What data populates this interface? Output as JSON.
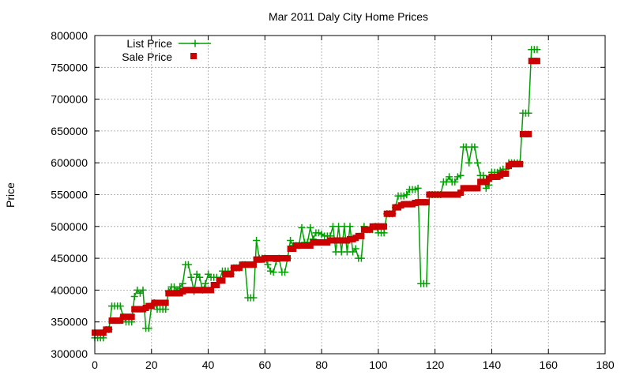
{
  "chart_data": {
    "type": "line",
    "title": "Mar 2011 Daly City Home Prices",
    "xlabel": "",
    "ylabel": "Price",
    "xlim": [
      0,
      180
    ],
    "ylim": [
      300000,
      800000
    ],
    "x_ticks": [
      0,
      20,
      40,
      60,
      80,
      100,
      120,
      140,
      160,
      180
    ],
    "y_ticks": [
      300000,
      350000,
      400000,
      450000,
      500000,
      550000,
      600000,
      650000,
      700000,
      750000,
      800000
    ],
    "grid": true,
    "legend_position": "top-left",
    "series": [
      {
        "name": "List Price",
        "style": "line with + markers",
        "color": "#00a000",
        "points": [
          [
            0,
            325000
          ],
          [
            1,
            325000
          ],
          [
            2,
            325000
          ],
          [
            3,
            325000
          ],
          [
            4,
            338000
          ],
          [
            5,
            338000
          ],
          [
            6,
            375000
          ],
          [
            7,
            375000
          ],
          [
            8,
            375000
          ],
          [
            9,
            375000
          ],
          [
            10,
            358000
          ],
          [
            11,
            350000
          ],
          [
            12,
            350000
          ],
          [
            13,
            350000
          ],
          [
            14,
            390000
          ],
          [
            15,
            400000
          ],
          [
            16,
            395000
          ],
          [
            17,
            400000
          ],
          [
            18,
            340000
          ],
          [
            19,
            340000
          ],
          [
            20,
            375000
          ],
          [
            21,
            380000
          ],
          [
            22,
            370000
          ],
          [
            23,
            370000
          ],
          [
            24,
            370000
          ],
          [
            25,
            370000
          ],
          [
            26,
            398000
          ],
          [
            27,
            405000
          ],
          [
            28,
            405000
          ],
          [
            29,
            400000
          ],
          [
            30,
            405000
          ],
          [
            31,
            410000
          ],
          [
            32,
            440000
          ],
          [
            33,
            440000
          ],
          [
            34,
            420000
          ],
          [
            35,
            398000
          ],
          [
            36,
            425000
          ],
          [
            37,
            420000
          ],
          [
            38,
            400000
          ],
          [
            39,
            410000
          ],
          [
            40,
            425000
          ],
          [
            41,
            420000
          ],
          [
            42,
            420000
          ],
          [
            43,
            420000
          ],
          [
            44,
            415000
          ],
          [
            45,
            430000
          ],
          [
            46,
            430000
          ],
          [
            47,
            430000
          ],
          [
            48,
            425000
          ],
          [
            49,
            435000
          ],
          [
            50,
            435000
          ],
          [
            51,
            435000
          ],
          [
            52,
            440000
          ],
          [
            53,
            440000
          ],
          [
            54,
            388000
          ],
          [
            55,
            388000
          ],
          [
            56,
            388000
          ],
          [
            57,
            478000
          ],
          [
            58,
            450000
          ],
          [
            59,
            450000
          ],
          [
            60,
            450000
          ],
          [
            61,
            440000
          ],
          [
            62,
            430000
          ],
          [
            63,
            428000
          ],
          [
            64,
            445000
          ],
          [
            65,
            450000
          ],
          [
            66,
            428000
          ],
          [
            67,
            428000
          ],
          [
            68,
            450000
          ],
          [
            69,
            478000
          ],
          [
            70,
            470000
          ],
          [
            71,
            470000
          ],
          [
            72,
            470000
          ],
          [
            73,
            498000
          ],
          [
            74,
            475000
          ],
          [
            75,
            475000
          ],
          [
            76,
            498000
          ],
          [
            77,
            480000
          ],
          [
            78,
            490000
          ],
          [
            79,
            490000
          ],
          [
            80,
            488000
          ],
          [
            81,
            485000
          ],
          [
            82,
            485000
          ],
          [
            83,
            485000
          ],
          [
            84,
            500000
          ],
          [
            85,
            460000
          ],
          [
            86,
            500000
          ],
          [
            87,
            460000
          ],
          [
            88,
            500000
          ],
          [
            89,
            460000
          ],
          [
            90,
            500000
          ],
          [
            91,
            460000
          ],
          [
            92,
            465000
          ],
          [
            93,
            450000
          ],
          [
            94,
            450000
          ],
          [
            95,
            500000
          ],
          [
            96,
            495000
          ],
          [
            97,
            495000
          ],
          [
            98,
            495000
          ],
          [
            99,
            500000
          ],
          [
            100,
            490000
          ],
          [
            101,
            490000
          ],
          [
            102,
            490000
          ],
          [
            103,
            520000
          ],
          [
            104,
            520000
          ],
          [
            105,
            520000
          ],
          [
            106,
            530000
          ],
          [
            107,
            548000
          ],
          [
            108,
            548000
          ],
          [
            109,
            548000
          ],
          [
            110,
            550000
          ],
          [
            111,
            558000
          ],
          [
            112,
            558000
          ],
          [
            113,
            558000
          ],
          [
            114,
            560000
          ],
          [
            115,
            410000
          ],
          [
            116,
            410000
          ],
          [
            117,
            410000
          ],
          [
            118,
            550000
          ],
          [
            119,
            550000
          ],
          [
            120,
            550000
          ],
          [
            121,
            550000
          ],
          [
            122,
            550000
          ],
          [
            123,
            570000
          ],
          [
            124,
            570000
          ],
          [
            125,
            578000
          ],
          [
            126,
            570000
          ],
          [
            127,
            570000
          ],
          [
            128,
            578000
          ],
          [
            129,
            580000
          ],
          [
            130,
            625000
          ],
          [
            131,
            625000
          ],
          [
            132,
            600000
          ],
          [
            133,
            625000
          ],
          [
            134,
            625000
          ],
          [
            135,
            600000
          ],
          [
            136,
            580000
          ],
          [
            137,
            580000
          ],
          [
            138,
            560000
          ],
          [
            139,
            565000
          ],
          [
            140,
            585000
          ],
          [
            141,
            585000
          ],
          [
            142,
            585000
          ],
          [
            143,
            588000
          ],
          [
            144,
            590000
          ],
          [
            145,
            590000
          ],
          [
            146,
            600000
          ],
          [
            147,
            600000
          ],
          [
            148,
            600000
          ],
          [
            149,
            600000
          ],
          [
            150,
            600000
          ],
          [
            151,
            678000
          ],
          [
            152,
            678000
          ],
          [
            153,
            678000
          ],
          [
            154,
            778000
          ],
          [
            155,
            778000
          ],
          [
            156,
            778000
          ]
        ]
      },
      {
        "name": "Sale Price",
        "style": "filled square markers",
        "color": "#cc0000",
        "points": [
          [
            0,
            333000
          ],
          [
            1,
            333000
          ],
          [
            2,
            333000
          ],
          [
            3,
            333000
          ],
          [
            4,
            338000
          ],
          [
            5,
            338000
          ],
          [
            6,
            352000
          ],
          [
            7,
            352000
          ],
          [
            8,
            352000
          ],
          [
            9,
            352000
          ],
          [
            10,
            358000
          ],
          [
            11,
            358000
          ],
          [
            12,
            358000
          ],
          [
            13,
            358000
          ],
          [
            14,
            370000
          ],
          [
            15,
            370000
          ],
          [
            16,
            370000
          ],
          [
            17,
            370000
          ],
          [
            18,
            372000
          ],
          [
            19,
            375000
          ],
          [
            20,
            375000
          ],
          [
            21,
            380000
          ],
          [
            22,
            380000
          ],
          [
            23,
            380000
          ],
          [
            24,
            380000
          ],
          [
            25,
            380000
          ],
          [
            26,
            395000
          ],
          [
            27,
            395000
          ],
          [
            28,
            395000
          ],
          [
            29,
            395000
          ],
          [
            30,
            395000
          ],
          [
            31,
            398000
          ],
          [
            32,
            400000
          ],
          [
            33,
            400000
          ],
          [
            34,
            400000
          ],
          [
            35,
            400000
          ],
          [
            36,
            400000
          ],
          [
            37,
            400000
          ],
          [
            38,
            400000
          ],
          [
            39,
            400000
          ],
          [
            40,
            400000
          ],
          [
            41,
            400000
          ],
          [
            42,
            408000
          ],
          [
            43,
            408000
          ],
          [
            44,
            415000
          ],
          [
            45,
            415000
          ],
          [
            46,
            425000
          ],
          [
            47,
            425000
          ],
          [
            48,
            425000
          ],
          [
            49,
            435000
          ],
          [
            50,
            435000
          ],
          [
            51,
            435000
          ],
          [
            52,
            440000
          ],
          [
            53,
            440000
          ],
          [
            54,
            440000
          ],
          [
            55,
            440000
          ],
          [
            56,
            440000
          ],
          [
            57,
            448000
          ],
          [
            58,
            448000
          ],
          [
            59,
            448000
          ],
          [
            60,
            450000
          ],
          [
            61,
            450000
          ],
          [
            62,
            450000
          ],
          [
            63,
            450000
          ],
          [
            64,
            450000
          ],
          [
            65,
            450000
          ],
          [
            66,
            450000
          ],
          [
            67,
            450000
          ],
          [
            68,
            450000
          ],
          [
            69,
            465000
          ],
          [
            70,
            465000
          ],
          [
            71,
            470000
          ],
          [
            72,
            470000
          ],
          [
            73,
            470000
          ],
          [
            74,
            470000
          ],
          [
            75,
            470000
          ],
          [
            76,
            470000
          ],
          [
            77,
            475000
          ],
          [
            78,
            475000
          ],
          [
            79,
            475000
          ],
          [
            80,
            475000
          ],
          [
            81,
            475000
          ],
          [
            82,
            475000
          ],
          [
            83,
            478000
          ],
          [
            84,
            478000
          ],
          [
            85,
            478000
          ],
          [
            86,
            478000
          ],
          [
            87,
            478000
          ],
          [
            88,
            478000
          ],
          [
            89,
            478000
          ],
          [
            90,
            480000
          ],
          [
            91,
            480000
          ],
          [
            92,
            482000
          ],
          [
            93,
            485000
          ],
          [
            94,
            485000
          ],
          [
            95,
            495000
          ],
          [
            96,
            495000
          ],
          [
            97,
            495000
          ],
          [
            98,
            500000
          ],
          [
            99,
            500000
          ],
          [
            100,
            500000
          ],
          [
            101,
            500000
          ],
          [
            102,
            500000
          ],
          [
            103,
            520000
          ],
          [
            104,
            520000
          ],
          [
            105,
            520000
          ],
          [
            106,
            530000
          ],
          [
            107,
            530000
          ],
          [
            108,
            533000
          ],
          [
            109,
            535000
          ],
          [
            110,
            535000
          ],
          [
            111,
            535000
          ],
          [
            112,
            535000
          ],
          [
            113,
            537000
          ],
          [
            114,
            538000
          ],
          [
            115,
            538000
          ],
          [
            116,
            538000
          ],
          [
            117,
            538000
          ],
          [
            118,
            550000
          ],
          [
            119,
            550000
          ],
          [
            120,
            550000
          ],
          [
            121,
            550000
          ],
          [
            122,
            550000
          ],
          [
            123,
            550000
          ],
          [
            124,
            550000
          ],
          [
            125,
            550000
          ],
          [
            126,
            550000
          ],
          [
            127,
            550000
          ],
          [
            128,
            550000
          ],
          [
            129,
            553000
          ],
          [
            130,
            560000
          ],
          [
            131,
            560000
          ],
          [
            132,
            560000
          ],
          [
            133,
            560000
          ],
          [
            134,
            560000
          ],
          [
            135,
            560000
          ],
          [
            136,
            570000
          ],
          [
            137,
            570000
          ],
          [
            138,
            570000
          ],
          [
            139,
            575000
          ],
          [
            140,
            578000
          ],
          [
            141,
            578000
          ],
          [
            142,
            578000
          ],
          [
            143,
            580000
          ],
          [
            144,
            583000
          ],
          [
            145,
            583000
          ],
          [
            146,
            595000
          ],
          [
            147,
            598000
          ],
          [
            148,
            598000
          ],
          [
            149,
            598000
          ],
          [
            150,
            598000
          ],
          [
            151,
            645000
          ],
          [
            152,
            645000
          ],
          [
            153,
            645000
          ],
          [
            154,
            760000
          ],
          [
            155,
            760000
          ],
          [
            156,
            760000
          ]
        ]
      }
    ]
  }
}
